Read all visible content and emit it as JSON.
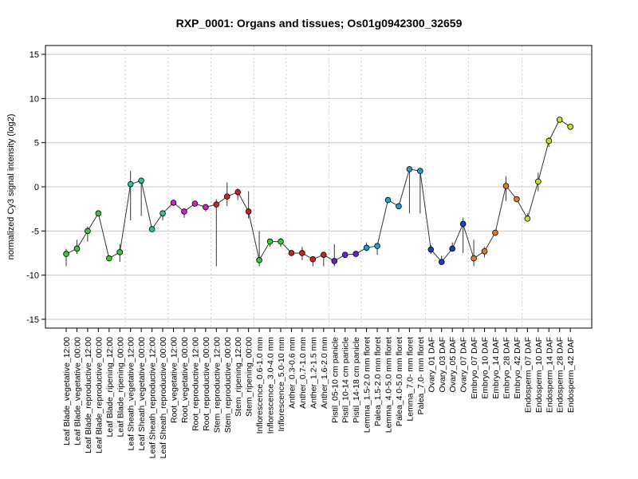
{
  "chart_data": {
    "type": "line",
    "title": "RXP_0001: Organs and tissues; Os01g0942300_32659",
    "ylabel": "normalized Cy3 signal intensity (log2)",
    "xlabel": "",
    "ylim": [
      -16,
      16
    ],
    "yticks": [
      -15,
      -10,
      -5,
      0,
      5,
      10,
      15
    ],
    "grid": true,
    "categories": [
      "Leaf Blade_vegetative_12:00",
      "Leaf Blade_vegetative_00:00",
      "Leaf Blade_reproductive_12:00",
      "Leaf Blade_reproductive_00:00",
      "Leaf Blade_ripening_12:00",
      "Leaf Blade_ripening_00:00",
      "Leaf Sheath_vegetative_12:00",
      "Leaf Sheath_vegetative_00:00",
      "Leaf Sheath_reproductive_12:00",
      "Leaf Sheath_reproductive_00:00",
      "Root_vegetative_12:00",
      "Root_vegetative_00:00",
      "Root_reproductive_12:00",
      "Root_reproductive_00:00",
      "Stem_reproductive_12:00",
      "Stem_reproductive_00:00",
      "Stem_ripening_12:00",
      "Stem_ripening_00:00",
      "Inflorescence_0.6-1.0 mm",
      "Inflorescence_3.0-4.0 mm",
      "Inflorescence_5.0-10 mm",
      "Anther_0.3-0.6 mm",
      "Anther_0.7-1.0 mm",
      "Anther_1.2-1.5 mm",
      "Anther_1.6-2.0 mm",
      "Pistil_05-10 cm panicle",
      "Pistil_10-14 cm panicle",
      "Pistil_14-18 cm panicle",
      "Lemma_1.5-2.0 mm floret",
      "Palea_1.5-2.0 mm floret",
      "Lemma_4.0-5.0 mm floret",
      "Palea_4.0-5.0 mm floret",
      "Lemma_7.0- mm floret",
      "Palea_7.0- mm floret",
      "Ovary_01 DAF",
      "Ovary_03 DAF",
      "Ovary_05 DAF",
      "Ovary_07 DAF",
      "Embryo_07 DAF",
      "Embryo_10 DAF",
      "Embryo_14 DAF",
      "Embryo_28 DAF",
      "Embryo_42 DAF",
      "Endosperm_07 DAF",
      "Endosperm_10 DAF",
      "Endosperm_14 DAF",
      "Endosperm_28 DAF",
      "Endosperm_42 DAF"
    ],
    "values": [
      -7.6,
      -7.0,
      -5.0,
      -3.0,
      -8.1,
      -7.4,
      0.3,
      0.7,
      -4.8,
      -3.0,
      -1.8,
      -2.8,
      -1.9,
      -2.3,
      -2.0,
      -1.1,
      -0.6,
      -2.8,
      -8.3,
      -6.2,
      -6.2,
      -7.5,
      -7.5,
      -8.2,
      -7.7,
      -8.4,
      -7.7,
      -7.6,
      -6.9,
      -6.7,
      -1.5,
      -2.2,
      2.0,
      1.8,
      -7.1,
      -8.5,
      -7.0,
      -4.2,
      -8.1,
      -7.3,
      -5.2,
      0.1,
      -1.4,
      -3.6,
      0.6,
      5.2,
      7.6,
      6.8
    ],
    "error_bars": [
      [
        -9.0,
        -7.0
      ],
      [
        -7.6,
        -6.0
      ],
      [
        -6.2,
        -4.5
      ],
      [
        -3.0,
        -3.0
      ],
      [
        -8.1,
        -8.1
      ],
      [
        -8.5,
        -6.5
      ],
      [
        -3.8,
        1.8
      ],
      [
        -3.3,
        1.0
      ],
      [
        -4.8,
        -4.8
      ],
      [
        -3.8,
        -2.8
      ],
      [
        -1.8,
        -1.8
      ],
      [
        -3.5,
        -2.6
      ],
      [
        -1.9,
        -1.9
      ],
      [
        -2.8,
        -2.0
      ],
      [
        -9.0,
        -1.4
      ],
      [
        -2.2,
        0.5
      ],
      [
        -1.5,
        -0.2
      ],
      [
        -3.6,
        -0.5
      ],
      [
        -9.0,
        -5.0
      ],
      [
        -6.8,
        -6.0
      ],
      [
        -6.8,
        -5.8
      ],
      [
        -7.5,
        -7.5
      ],
      [
        -8.3,
        -6.8
      ],
      [
        -9.0,
        -8.0
      ],
      [
        -9.0,
        -7.5
      ],
      [
        -9.0,
        -6.5
      ],
      [
        -8.0,
        -7.5
      ],
      [
        -7.6,
        -7.6
      ],
      [
        -7.3,
        -6.3
      ],
      [
        -7.7,
        -6.5
      ],
      [
        -1.5,
        -1.5
      ],
      [
        -2.2,
        -2.2
      ],
      [
        -3.0,
        2.0
      ],
      [
        -3.0,
        1.8
      ],
      [
        -7.6,
        -6.6
      ],
      [
        -8.5,
        -7.8
      ],
      [
        -7.3,
        -6.3
      ],
      [
        -7.5,
        -3.5
      ],
      [
        -9.0,
        -6.0
      ],
      [
        -8.0,
        -6.8
      ],
      [
        -5.2,
        -5.2
      ],
      [
        -1.6,
        1.2
      ],
      [
        -1.4,
        -1.4
      ],
      [
        -3.6,
        -3.0
      ],
      [
        -0.5,
        1.6
      ],
      [
        4.5,
        5.6
      ],
      [
        7.6,
        7.6
      ],
      [
        6.8,
        6.8
      ]
    ],
    "point_colors": [
      "#33cc33",
      "#33cc33",
      "#33cc33",
      "#33cc33",
      "#33cc33",
      "#33cc33",
      "#26c4a0",
      "#26c4a0",
      "#26c4a0",
      "#26c4a0",
      "#cc22cc",
      "#cc22cc",
      "#cc22cc",
      "#cc22cc",
      "#cc2222",
      "#cc2222",
      "#cc2222",
      "#cc2222",
      "#33cc33",
      "#33cc33",
      "#33cc33",
      "#cc2222",
      "#cc2222",
      "#cc2222",
      "#cc2222",
      "#6622cc",
      "#6622cc",
      "#6622cc",
      "#1fa0cc",
      "#1fa0cc",
      "#1fa0cc",
      "#1fa0cc",
      "#1fa0cc",
      "#1fa0cc",
      "#1a3fcc",
      "#1a3fcc",
      "#1a3fcc",
      "#1a3fcc",
      "#e67a1f",
      "#e67a1f",
      "#e67a1f",
      "#e67a1f",
      "#e67a1f",
      "#ccdd22",
      "#ccdd22",
      "#ccdd22",
      "#ccdd22",
      "#ccdd22"
    ],
    "group_separators_after": [
      5,
      9,
      13,
      17,
      20,
      24,
      27,
      33,
      37,
      42
    ],
    "colors": {
      "line": "#333333",
      "grid": "#c8c8c8",
      "separator": "#cccccc"
    }
  }
}
